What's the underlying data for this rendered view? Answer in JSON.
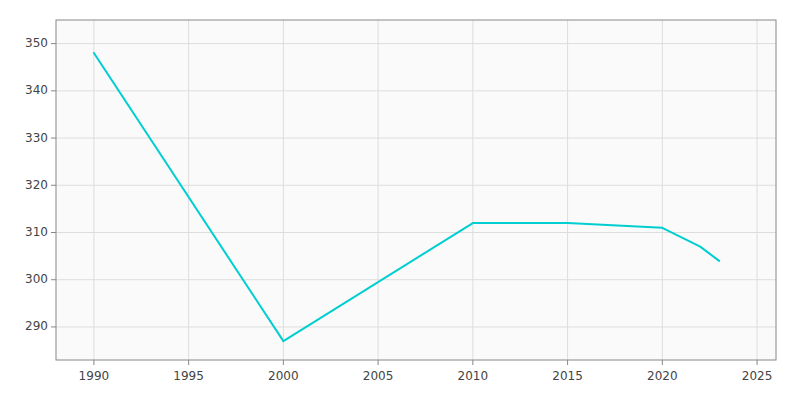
{
  "chart_data": {
    "type": "line",
    "x": [
      1990,
      2000,
      2010,
      2015,
      2020,
      2022,
      2023
    ],
    "values": [
      348,
      287,
      312,
      312,
      311,
      307,
      304
    ],
    "color": "#00CED1",
    "xlim": [
      1988,
      2026
    ],
    "ylim": [
      283,
      355
    ],
    "xticks": [
      1990,
      1995,
      2000,
      2005,
      2010,
      2015,
      2020,
      2025
    ],
    "yticks": [
      290,
      300,
      310,
      320,
      330,
      340,
      350
    ],
    "grid": true
  }
}
